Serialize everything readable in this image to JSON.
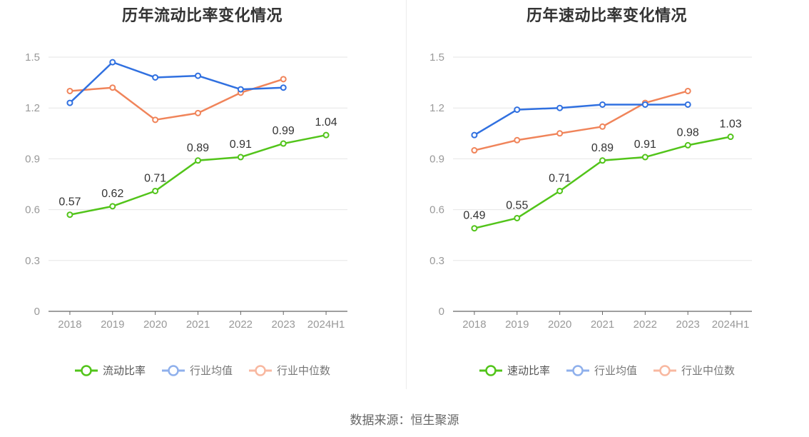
{
  "source": "数据来源：恒生聚源",
  "colors": {
    "main": "#52c41a",
    "average": "#3070e0",
    "median": "#f0845a",
    "average_legend": "#8fb0ec",
    "median_legend": "#f8b8a0",
    "grid": "#e6e6e6",
    "axis": "#666666",
    "tick": "#999999",
    "label": "#333333"
  },
  "chart_data": [
    {
      "type": "line",
      "title": "历年流动比率变化情况",
      "categories": [
        "2018",
        "2019",
        "2020",
        "2021",
        "2022",
        "2023",
        "2024H1"
      ],
      "ylim": [
        0,
        1.5
      ],
      "yticks": [
        "0",
        "0.3",
        "0.6",
        "0.9",
        "1.2",
        "1.5"
      ],
      "grid": true,
      "legend_position": "bottom",
      "series": [
        {
          "name": "流动比率",
          "role": "main",
          "values": [
            0.57,
            0.62,
            0.71,
            0.89,
            0.91,
            0.99,
            1.04
          ],
          "labels": [
            "0.57",
            "0.62",
            "0.71",
            "0.89",
            "0.91",
            "0.99",
            "1.04"
          ]
        },
        {
          "name": "行业均值",
          "role": "average",
          "values": [
            1.23,
            1.47,
            1.38,
            1.39,
            1.31,
            1.32,
            null
          ]
        },
        {
          "name": "行业中位数",
          "role": "median",
          "values": [
            1.3,
            1.32,
            1.13,
            1.17,
            1.29,
            1.37,
            null
          ]
        }
      ]
    },
    {
      "type": "line",
      "title": "历年速动比率变化情况",
      "categories": [
        "2018",
        "2019",
        "2020",
        "2021",
        "2022",
        "2023",
        "2024H1"
      ],
      "ylim": [
        0,
        1.5
      ],
      "yticks": [
        "0",
        "0.3",
        "0.6",
        "0.9",
        "1.2",
        "1.5"
      ],
      "grid": true,
      "legend_position": "bottom",
      "series": [
        {
          "name": "速动比率",
          "role": "main",
          "values": [
            0.49,
            0.55,
            0.71,
            0.89,
            0.91,
            0.98,
            1.03
          ],
          "labels": [
            "0.49",
            "0.55",
            "0.71",
            "0.89",
            "0.91",
            "0.98",
            "1.03"
          ]
        },
        {
          "name": "行业均值",
          "role": "average",
          "values": [
            1.04,
            1.19,
            1.2,
            1.22,
            1.22,
            1.22,
            null
          ]
        },
        {
          "name": "行业中位数",
          "role": "median",
          "values": [
            0.95,
            1.01,
            1.05,
            1.09,
            1.23,
            1.3,
            null
          ]
        }
      ]
    }
  ]
}
